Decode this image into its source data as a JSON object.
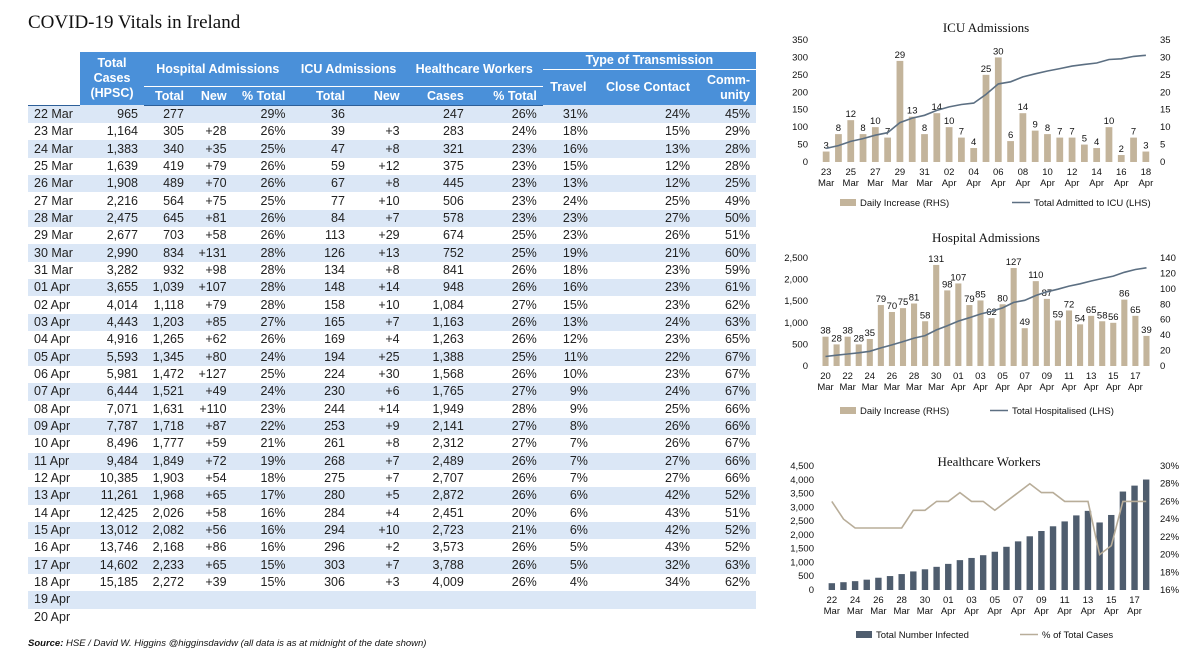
{
  "title": "COVID-19 Vitals in Ireland",
  "source_label": "Source:",
  "source_text": " HSE / David W. Higgins @higginsdavidw (all data is as at midnight of the date shown)",
  "table": {
    "groups": [
      "Hospital Admissions",
      "ICU Admissions",
      "Healthcare Workers",
      "Type of Transmission"
    ],
    "total_cases_header": [
      "Total",
      "Cases",
      "(HPSC)"
    ],
    "subheaders": {
      "hosp_total": "Total",
      "hosp_new": "New",
      "hosp_pct": "% Total",
      "icu_total": "Total",
      "icu_new": "New",
      "hcw_cases": "Cases",
      "hcw_pct": "% Total",
      "travel": "Travel",
      "close_contact": "Close Contact",
      "community": "Comm-unity"
    },
    "rows": [
      [
        "22 Mar",
        "965",
        "277",
        "",
        "29%",
        "36",
        "",
        "247",
        "26%",
        "31%",
        "24%",
        "45%"
      ],
      [
        "23 Mar",
        "1,164",
        "305",
        "+28",
        "26%",
        "39",
        "+3",
        "283",
        "24%",
        "18%",
        "15%",
        "29%"
      ],
      [
        "24 Mar",
        "1,383",
        "340",
        "+35",
        "25%",
        "47",
        "+8",
        "321",
        "23%",
        "16%",
        "13%",
        "28%"
      ],
      [
        "25 Mar",
        "1,639",
        "419",
        "+79",
        "26%",
        "59",
        "+12",
        "375",
        "23%",
        "15%",
        "12%",
        "28%"
      ],
      [
        "26 Mar",
        "1,908",
        "489",
        "+70",
        "26%",
        "67",
        "+8",
        "445",
        "23%",
        "13%",
        "12%",
        "25%"
      ],
      [
        "27 Mar",
        "2,216",
        "564",
        "+75",
        "25%",
        "77",
        "+10",
        "506",
        "23%",
        "24%",
        "25%",
        "49%"
      ],
      [
        "28 Mar",
        "2,475",
        "645",
        "+81",
        "26%",
        "84",
        "+7",
        "578",
        "23%",
        "23%",
        "27%",
        "50%"
      ],
      [
        "29 Mar",
        "2,677",
        "703",
        "+58",
        "26%",
        "113",
        "+29",
        "674",
        "25%",
        "23%",
        "26%",
        "51%"
      ],
      [
        "30 Mar",
        "2,990",
        "834",
        "+131",
        "28%",
        "126",
        "+13",
        "752",
        "25%",
        "19%",
        "21%",
        "60%"
      ],
      [
        "31 Mar",
        "3,282",
        "932",
        "+98",
        "28%",
        "134",
        "+8",
        "841",
        "26%",
        "18%",
        "23%",
        "59%"
      ],
      [
        "01 Apr",
        "3,655",
        "1,039",
        "+107",
        "28%",
        "148",
        "+14",
        "948",
        "26%",
        "16%",
        "23%",
        "61%"
      ],
      [
        "02 Apr",
        "4,014",
        "1,118",
        "+79",
        "28%",
        "158",
        "+10",
        "1,084",
        "27%",
        "15%",
        "23%",
        "62%"
      ],
      [
        "03 Apr",
        "4,443",
        "1,203",
        "+85",
        "27%",
        "165",
        "+7",
        "1,163",
        "26%",
        "13%",
        "24%",
        "63%"
      ],
      [
        "04 Apr",
        "4,916",
        "1,265",
        "+62",
        "26%",
        "169",
        "+4",
        "1,263",
        "26%",
        "12%",
        "23%",
        "65%"
      ],
      [
        "05 Apr",
        "5,593",
        "1,345",
        "+80",
        "24%",
        "194",
        "+25",
        "1,388",
        "25%",
        "11%",
        "22%",
        "67%"
      ],
      [
        "06 Apr",
        "5,981",
        "1,472",
        "+127",
        "25%",
        "224",
        "+30",
        "1,568",
        "26%",
        "10%",
        "23%",
        "67%"
      ],
      [
        "07 Apr",
        "6,444",
        "1,521",
        "+49",
        "24%",
        "230",
        "+6",
        "1,765",
        "27%",
        "9%",
        "24%",
        "67%"
      ],
      [
        "08 Apr",
        "7,071",
        "1,631",
        "+110",
        "23%",
        "244",
        "+14",
        "1,949",
        "28%",
        "9%",
        "25%",
        "66%"
      ],
      [
        "09 Apr",
        "7,787",
        "1,718",
        "+87",
        "22%",
        "253",
        "+9",
        "2,141",
        "27%",
        "8%",
        "26%",
        "66%"
      ],
      [
        "10 Apr",
        "8,496",
        "1,777",
        "+59",
        "21%",
        "261",
        "+8",
        "2,312",
        "27%",
        "7%",
        "26%",
        "67%"
      ],
      [
        "11 Apr",
        "9,484",
        "1,849",
        "+72",
        "19%",
        "268",
        "+7",
        "2,489",
        "26%",
        "7%",
        "27%",
        "66%"
      ],
      [
        "12 Apr",
        "10,385",
        "1,903",
        "+54",
        "18%",
        "275",
        "+7",
        "2,707",
        "26%",
        "7%",
        "27%",
        "66%"
      ],
      [
        "13 Apr",
        "11,261",
        "1,968",
        "+65",
        "17%",
        "280",
        "+5",
        "2,872",
        "26%",
        "6%",
        "42%",
        "52%"
      ],
      [
        "14 Apr",
        "12,425",
        "2,026",
        "+58",
        "16%",
        "284",
        "+4",
        "2,451",
        "20%",
        "6%",
        "43%",
        "51%"
      ],
      [
        "15 Apr",
        "13,012",
        "2,082",
        "+56",
        "16%",
        "294",
        "+10",
        "2,723",
        "21%",
        "6%",
        "42%",
        "52%"
      ],
      [
        "16 Apr",
        "13,746",
        "2,168",
        "+86",
        "16%",
        "296",
        "+2",
        "3,573",
        "26%",
        "5%",
        "43%",
        "52%"
      ],
      [
        "17 Apr",
        "14,602",
        "2,233",
        "+65",
        "15%",
        "303",
        "+7",
        "3,788",
        "26%",
        "5%",
        "32%",
        "63%"
      ],
      [
        "18 Apr",
        "15,185",
        "2,272",
        "+39",
        "15%",
        "306",
        "+3",
        "4,009",
        "26%",
        "4%",
        "34%",
        "62%"
      ],
      [
        "19 Apr",
        "",
        "",
        "",
        "",
        "",
        "",
        "",
        "",
        "",
        "",
        ""
      ],
      [
        "20 Apr",
        "",
        "",
        "",
        "",
        "",
        "",
        "",
        "",
        "",
        "",
        ""
      ]
    ]
  },
  "chart_data": [
    {
      "type": "bar",
      "title": "ICU Admissions",
      "x_tick_labels": [
        [
          "23",
          "Mar"
        ],
        [
          "25",
          "Mar"
        ],
        [
          "27",
          "Mar"
        ],
        [
          "29",
          "Mar"
        ],
        [
          "31",
          "Mar"
        ],
        [
          "02",
          "Apr"
        ],
        [
          "04",
          "Apr"
        ],
        [
          "06",
          "Apr"
        ],
        [
          "08",
          "Apr"
        ],
        [
          "10",
          "Apr"
        ],
        [
          "12",
          "Apr"
        ],
        [
          "14",
          "Apr"
        ],
        [
          "16",
          "Apr"
        ],
        [
          "18",
          "Apr"
        ]
      ],
      "y_left_ticks": [
        "0",
        "50",
        "100",
        "150",
        "200",
        "250",
        "300",
        "350"
      ],
      "y_right_ticks": [
        "0",
        "5",
        "10",
        "15",
        "20",
        "25",
        "30",
        "35"
      ],
      "ylim_left": [
        0,
        350
      ],
      "ylim_right": [
        0,
        35
      ],
      "series": [
        {
          "name": "Daily Increase (RHS)",
          "kind": "bar",
          "axis": "right",
          "color": "#c3b49b",
          "values": [
            3,
            8,
            12,
            8,
            10,
            7,
            29,
            13,
            8,
            14,
            10,
            7,
            4,
            25,
            30,
            6,
            14,
            9,
            8,
            7,
            7,
            5,
            4,
            10,
            2,
            7,
            3
          ]
        },
        {
          "name": "Total Admitted to ICU (LHS)",
          "kind": "line",
          "axis": "left",
          "color": "#5c6f82",
          "values": [
            39,
            47,
            59,
            67,
            77,
            84,
            113,
            126,
            134,
            148,
            158,
            165,
            169,
            194,
            224,
            230,
            244,
            253,
            261,
            268,
            275,
            280,
            284,
            294,
            296,
            303,
            306
          ]
        }
      ]
    },
    {
      "type": "bar",
      "title": "Hospital Admissions",
      "x_tick_labels": [
        [
          "20",
          "Mar"
        ],
        [
          "22",
          "Mar"
        ],
        [
          "24",
          "Mar"
        ],
        [
          "26",
          "Mar"
        ],
        [
          "28",
          "Mar"
        ],
        [
          "30",
          "Mar"
        ],
        [
          "01",
          "Apr"
        ],
        [
          "03",
          "Apr"
        ],
        [
          "05",
          "Apr"
        ],
        [
          "07",
          "Apr"
        ],
        [
          "09",
          "Apr"
        ],
        [
          "11",
          "Apr"
        ],
        [
          "13",
          "Apr"
        ],
        [
          "15",
          "Apr"
        ],
        [
          "17",
          "Apr"
        ]
      ],
      "y_left_ticks": [
        "0",
        "500",
        "1,000",
        "1,500",
        "2,000",
        "2,500"
      ],
      "y_right_ticks": [
        "0",
        "20",
        "40",
        "60",
        "80",
        "100",
        "120",
        "140"
      ],
      "ylim_left": [
        0,
        2500
      ],
      "ylim_right": [
        0,
        140
      ],
      "series": [
        {
          "name": "Daily Increase (RHS)",
          "kind": "bar",
          "axis": "right",
          "color": "#c3b49b",
          "values": [
            38,
            28,
            38,
            28,
            35,
            79,
            70,
            75,
            81,
            58,
            131,
            98,
            107,
            79,
            85,
            62,
            80,
            127,
            49,
            110,
            87,
            59,
            72,
            54,
            65,
            58,
            56,
            86,
            65,
            39
          ]
        },
        {
          "name": "Total Hospitalised (LHS)",
          "kind": "line",
          "axis": "left",
          "color": "#5c6f82",
          "values": [
            220,
            249,
            277,
            305,
            340,
            419,
            489,
            564,
            645,
            703,
            834,
            932,
            1039,
            1118,
            1203,
            1265,
            1345,
            1472,
            1521,
            1631,
            1718,
            1777,
            1849,
            1903,
            1968,
            2026,
            2082,
            2168,
            2233,
            2272
          ]
        }
      ]
    },
    {
      "type": "bar",
      "title": "Healthcare Workers",
      "x_tick_labels": [
        [
          "22",
          "Mar"
        ],
        [
          "24",
          "Mar"
        ],
        [
          "26",
          "Mar"
        ],
        [
          "28",
          "Mar"
        ],
        [
          "30",
          "Mar"
        ],
        [
          "01",
          "Apr"
        ],
        [
          "03",
          "Apr"
        ],
        [
          "05",
          "Apr"
        ],
        [
          "07",
          "Apr"
        ],
        [
          "09",
          "Apr"
        ],
        [
          "11",
          "Apr"
        ],
        [
          "13",
          "Apr"
        ],
        [
          "15",
          "Apr"
        ],
        [
          "17",
          "Apr"
        ]
      ],
      "y_left_ticks": [
        "0",
        "500",
        "1,000",
        "1,500",
        "2,000",
        "2,500",
        "3,000",
        "3,500",
        "4,000",
        "4,500"
      ],
      "y_right_ticks": [
        "16%",
        "18%",
        "20%",
        "22%",
        "24%",
        "26%",
        "28%",
        "30%"
      ],
      "ylim_left": [
        0,
        4500
      ],
      "ylim_right": [
        16,
        30
      ],
      "series": [
        {
          "name": "Total Number Infected",
          "kind": "bar",
          "axis": "left",
          "color": "#4f5d6e",
          "values": [
            247,
            283,
            321,
            375,
            445,
            506,
            578,
            674,
            752,
            841,
            948,
            1084,
            1163,
            1263,
            1388,
            1568,
            1765,
            1949,
            2141,
            2312,
            2489,
            2707,
            2872,
            2451,
            2723,
            3573,
            3788,
            4009
          ]
        },
        {
          "name": "% of Total Cases",
          "kind": "line",
          "axis": "right",
          "color": "#b8ad99",
          "values": [
            26,
            24,
            23,
            23,
            23,
            23,
            23,
            25,
            25,
            26,
            26,
            27,
            26,
            26,
            25,
            26,
            27,
            28,
            27,
            27,
            26,
            26,
            26,
            20,
            21,
            26,
            26,
            26
          ]
        }
      ]
    }
  ]
}
